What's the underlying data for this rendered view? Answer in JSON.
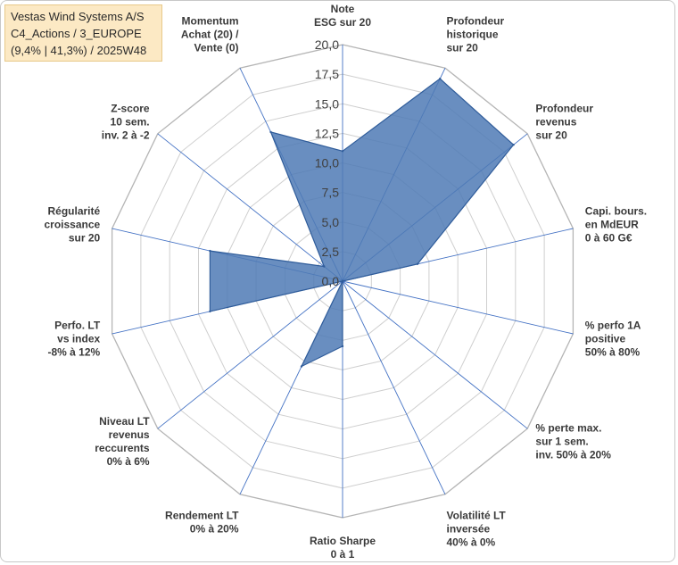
{
  "title": {
    "line1": "Vestas Wind Systems A/S",
    "line2": "C4_Actions / 3_EUROPE",
    "line3": "(9,4% | 41,3%) / 2025W48"
  },
  "colors": {
    "fill": "#4f7ab5",
    "stroke": "#2f5c9a",
    "grid": "#cfcfcf",
    "spoke": "#4472c4"
  },
  "chart_data": {
    "type": "radar",
    "rmin": 0,
    "rmax": 20,
    "tick_step": 2.5,
    "tick_labels": [
      "0,0",
      "2,5",
      "5,0",
      "7,5",
      "10,0",
      "12,5",
      "15,0",
      "17,5",
      "20,0"
    ],
    "categories": [
      [
        "Note",
        "ESG sur 20"
      ],
      [
        "Profondeur",
        "historique",
        "sur 20"
      ],
      [
        "Profondeur",
        "revenus",
        "sur 20"
      ],
      [
        "Capi. bours.",
        "en MdEUR",
        "0 à 60 G€"
      ],
      [
        "% perfo 1A",
        "positive",
        "50% à 80%"
      ],
      [
        "% perte max.",
        "sur 1 sem.",
        "inv. 50% à 20%"
      ],
      [
        "Volatilité LT",
        "inversée",
        "40% à 0%"
      ],
      [
        "Ratio Sharpe",
        "0 à 1"
      ],
      [
        "Rendement LT",
        "0% à 20%"
      ],
      [
        "Niveau LT",
        "revenus",
        "reccurents",
        "0% à 6%"
      ],
      [
        "Perfo. LT",
        "vs index",
        "-8% à 12%"
      ],
      [
        "Régularité",
        "croissance",
        "sur 20"
      ],
      [
        "Z-score",
        "10 sem.",
        "inv. 2 à -2"
      ],
      [
        "Momentum",
        "Achat (20) /",
        "Vente (0)"
      ]
    ],
    "values": [
      11,
      19,
      18.5,
      6.5,
      0,
      0,
      0,
      5.5,
      8,
      0,
      11.5,
      11.5,
      2,
      14
    ],
    "grid": true,
    "legend": "none"
  }
}
